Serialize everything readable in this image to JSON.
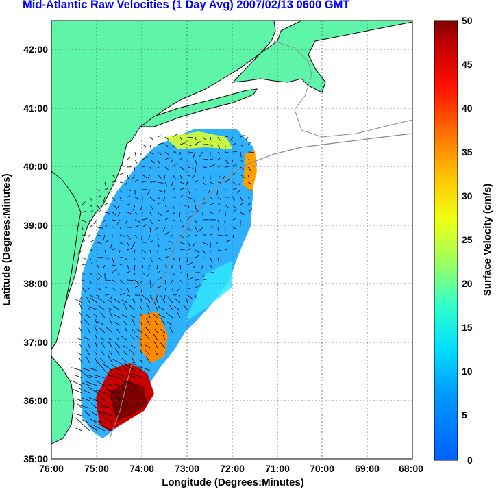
{
  "title": "Mid-Atlantic Raw Velocities (1 Day Avg) 2007/02/13 0600 GMT",
  "map": {
    "x_label": "Longitude (Degrees:Minutes)",
    "y_label": "Latitude (Degrees:Minutes)",
    "x_ticks": [
      "76:00",
      "75:00",
      "74:00",
      "73:00",
      "72:00",
      "71:00",
      "70:00",
      "69:00",
      "68:00"
    ],
    "y_ticks": [
      "42:00",
      "41:00",
      "40:00",
      "39:00",
      "38:00",
      "37:00",
      "36:00",
      "35:00"
    ],
    "lon_range": [
      -76,
      -68
    ],
    "lat_range": [
      35,
      42.5
    ],
    "grid": true,
    "land_color": "#5ff5a8"
  },
  "colorbar": {
    "label": "Surface Velocity (cm/s)",
    "ticks": [
      "50",
      "45",
      "40",
      "35",
      "30",
      "25",
      "20",
      "15",
      "10",
      "5",
      "0"
    ],
    "range": [
      0,
      50
    ],
    "colormap": "jet"
  }
}
